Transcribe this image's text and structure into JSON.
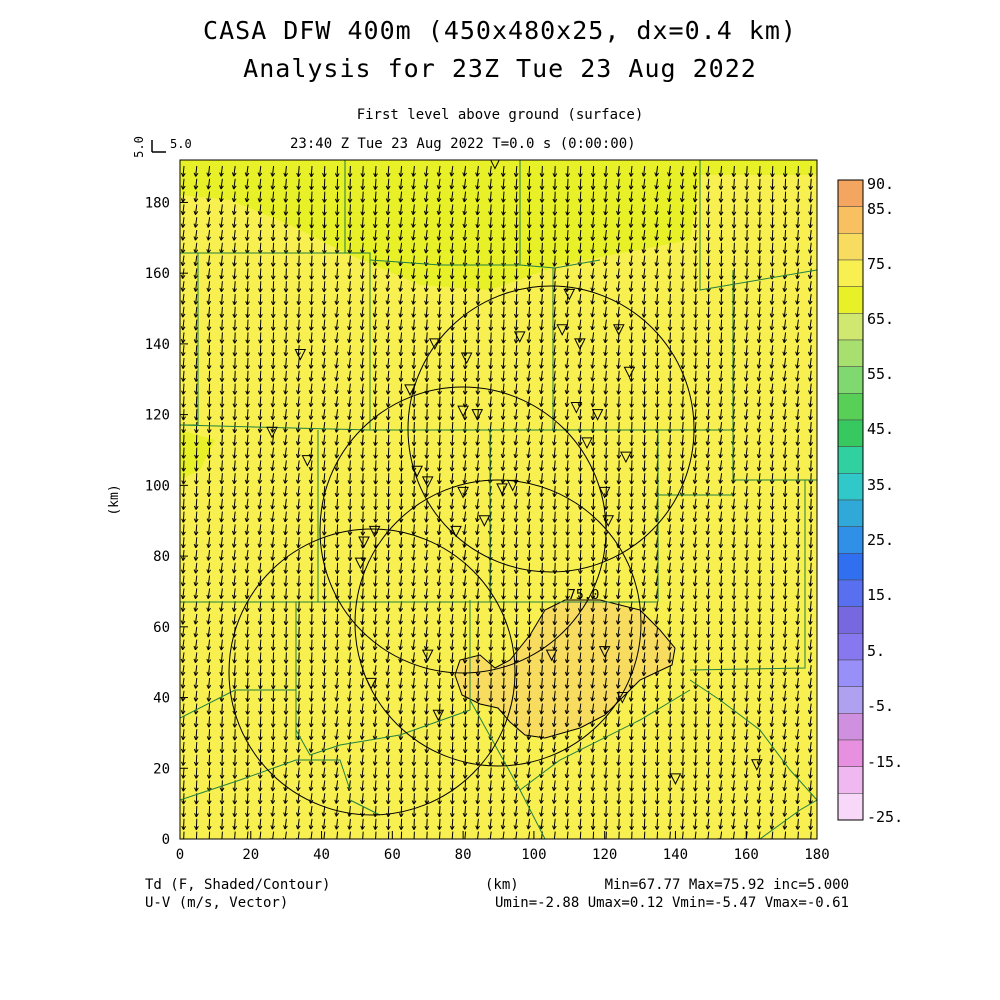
{
  "title": "CASA DFW 400m (450x480x25, dx=0.4 km)",
  "subtitle": "Analysis for 23Z Tue 23 Aug 2022",
  "level_label": "First level above ground (surface)",
  "time_label": "23:40 Z Tue 23 Aug 2022   T=0.0 s (0:00:00)",
  "vector_key": {
    "rot_label": "5.0",
    "label": "5.0"
  },
  "x_axis": {
    "label": "(km)",
    "ticks": [
      0,
      20,
      40,
      60,
      80,
      100,
      120,
      140,
      160,
      180
    ],
    "range": [
      0,
      180
    ]
  },
  "y_axis": {
    "label": "(km)",
    "ticks": [
      0,
      20,
      40,
      60,
      80,
      100,
      120,
      140,
      160,
      180
    ],
    "range": [
      0,
      192
    ]
  },
  "contour_label": "75.0",
  "colorbar": {
    "labels": [
      "90.",
      "85.",
      "75.",
      "65.",
      "55.",
      "45.",
      "35.",
      "25.",
      "15.",
      "5.",
      "-5.",
      "-15.",
      "-25."
    ],
    "colors": [
      "#f4a660",
      "#f8c060",
      "#f8dc60",
      "#f8f050",
      "#e8f028",
      "#d0e870",
      "#a8e070",
      "#80d870",
      "#58d058",
      "#38c860",
      "#30d0a0",
      "#30c8c8",
      "#30a8d8",
      "#3090e8",
      "#3070f0",
      "#5870f0",
      "#7868e0",
      "#8878f0",
      "#9890f8",
      "#b0a0f0",
      "#d090e0",
      "#e890e0",
      "#f0b8f0",
      "#f8d8f8"
    ]
  },
  "footer": {
    "left1": "Td (F, Shaded/Contour)",
    "left2": "U-V (m/s, Vector)",
    "center": "(km)",
    "stats1": "Min=67.77 Max=75.92 inc=5.000",
    "stats2": "Umin=-2.88 Umax=0.12 Vmin=-5.47 Vmax=-0.61"
  }
}
